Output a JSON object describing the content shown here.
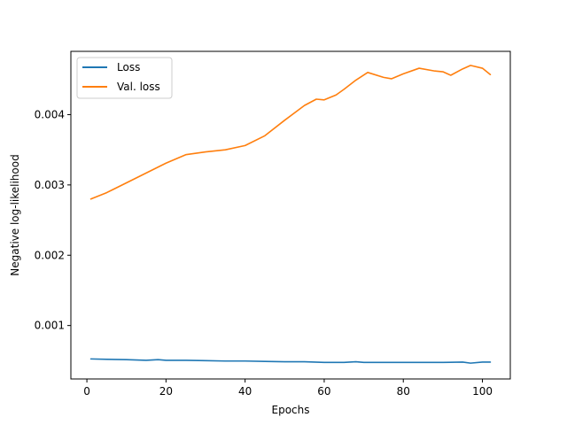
{
  "chart_data": {
    "type": "line",
    "title": "",
    "xlabel": "Epochs",
    "ylabel": "Negative log-likelihood",
    "xlim": [
      -4.05,
      107.05
    ],
    "ylim": [
      0.00024,
      0.0049
    ],
    "xticks": [
      0,
      20,
      40,
      60,
      80,
      100
    ],
    "xtick_labels": [
      "0",
      "20",
      "40",
      "60",
      "80",
      "100"
    ],
    "yticks": [
      0.001,
      0.002,
      0.003,
      0.004
    ],
    "ytick_labels": [
      "0.001",
      "0.002",
      "0.003",
      "0.004"
    ],
    "grid": false,
    "legend": "top-left",
    "series": [
      {
        "name": "Loss",
        "color": "#1f77b4",
        "x": [
          1,
          5,
          10,
          15,
          18,
          20,
          25,
          30,
          35,
          40,
          45,
          50,
          55,
          60,
          65,
          68,
          70,
          75,
          80,
          85,
          90,
          95,
          97,
          100,
          102
        ],
        "y": [
          0.000525,
          0.00052,
          0.000515,
          0.000505,
          0.000515,
          0.000505,
          0.000505,
          0.0005,
          0.000495,
          0.000495,
          0.00049,
          0.000485,
          0.000485,
          0.000475,
          0.000475,
          0.000485,
          0.000475,
          0.000475,
          0.000475,
          0.000475,
          0.000475,
          0.00048,
          0.000465,
          0.00048,
          0.00048
        ]
      },
      {
        "name": "Val. loss",
        "color": "#ff7f0e",
        "x": [
          1,
          5,
          10,
          15,
          20,
          25,
          30,
          35,
          40,
          45,
          50,
          55,
          58,
          60,
          63,
          65,
          68,
          71,
          75,
          77,
          80,
          84,
          88,
          90,
          92,
          95,
          97,
          100,
          102
        ],
        "y": [
          0.0028,
          0.00289,
          0.00303,
          0.00317,
          0.00331,
          0.00343,
          0.00347,
          0.0035,
          0.00356,
          0.0037,
          0.00392,
          0.00413,
          0.00422,
          0.00421,
          0.00428,
          0.00436,
          0.00449,
          0.0046,
          0.00453,
          0.00451,
          0.00458,
          0.00466,
          0.00462,
          0.00461,
          0.00456,
          0.00465,
          0.0047,
          0.00466,
          0.00457
        ]
      }
    ]
  }
}
